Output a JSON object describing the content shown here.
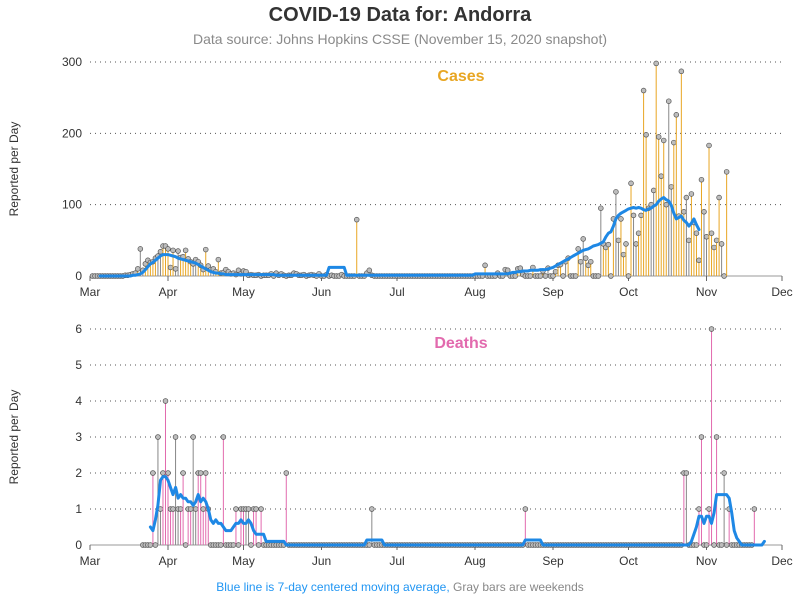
{
  "title": "COVID-19 Data for: Andorra",
  "subtitle": "Data source: Johns Hopkins CSSE (November 15, 2020 snapshot)",
  "footer": {
    "moving_avg_note": "Blue line is 7-day centered moving average,",
    "weekend_note": "Gray bars are weekends"
  },
  "colors": {
    "cases": "#e8a623",
    "deaths": "#e26aae",
    "moving_average": "#1e88e5",
    "weekend": "#888888",
    "grid": "#555555"
  },
  "chart_data": [
    {
      "type": "bar",
      "panel_title": "Cases",
      "ylabel": "Reported per Day",
      "xlabel": "",
      "ylim": [
        0,
        300
      ],
      "yticks": [
        0,
        100,
        200,
        300
      ],
      "x_domain": [
        "2020-03-01",
        "2020-12-01"
      ],
      "x_tick_labels": [
        "Mar",
        "Apr",
        "May",
        "Jun",
        "Jul",
        "Aug",
        "Sep",
        "Oct",
        "Nov",
        "Dec"
      ],
      "grid": true,
      "start_date": "2020-03-02",
      "daily_values": [
        0,
        0,
        0,
        0,
        0,
        0,
        0,
        0,
        0,
        0,
        0,
        0,
        0,
        1,
        1,
        2,
        3,
        4,
        10,
        38,
        8,
        17,
        22,
        19,
        20,
        25,
        28,
        34,
        42,
        42,
        38,
        12,
        36,
        10,
        35,
        26,
        27,
        36,
        24,
        20,
        17,
        23,
        20,
        15,
        9,
        37,
        14,
        9,
        10,
        6,
        23,
        4,
        5,
        9,
        6,
        3,
        4,
        2,
        8,
        3,
        7,
        6,
        1,
        2,
        1,
        1,
        2,
        0,
        1,
        1,
        1,
        3,
        0,
        4,
        1,
        3,
        1,
        0,
        1,
        1,
        4,
        3,
        1,
        1,
        2,
        0,
        1,
        2,
        1,
        0,
        3,
        0,
        0,
        2,
        0,
        1,
        0,
        0,
        0,
        2,
        0,
        0,
        0,
        0,
        0,
        79,
        0,
        0,
        0,
        4,
        8,
        1,
        0,
        0,
        0,
        0,
        0,
        0,
        0,
        0,
        0,
        0,
        0,
        0,
        0,
        0,
        0,
        0,
        0,
        0,
        0,
        0,
        0,
        0,
        0,
        0,
        0,
        0,
        0,
        0,
        0,
        0,
        0,
        0,
        0,
        0,
        0,
        0,
        0,
        0,
        0,
        0,
        0,
        0,
        0,
        0,
        15,
        0,
        0,
        0,
        0,
        4,
        0,
        0,
        9,
        8,
        0,
        0,
        0,
        10,
        11,
        2,
        0,
        0,
        0,
        12,
        0,
        0,
        0,
        7,
        0,
        11,
        0,
        0,
        6,
        15,
        16,
        0,
        20,
        25,
        0,
        0,
        0,
        38,
        20,
        52,
        25,
        15,
        20,
        0,
        0,
        0,
        95,
        45,
        40,
        44,
        0,
        80,
        118,
        50,
        80,
        30,
        45,
        0,
        130,
        85,
        45,
        60,
        85,
        260,
        198,
        95,
        100,
        120,
        298,
        195,
        140,
        190,
        100,
        245,
        125,
        187,
        226,
        84,
        287,
        90,
        110,
        50,
        115,
        75,
        60,
        22,
        135,
        90,
        55,
        183,
        60,
        40,
        50,
        110,
        45,
        0,
        146
      ],
      "moving_average": {
        "name": "7-day centered moving average",
        "start_date": "2020-03-05",
        "values": [
          0,
          0,
          0,
          0,
          0,
          0,
          0,
          0,
          0,
          0,
          0,
          0,
          0,
          1,
          1,
          2,
          3,
          5,
          9,
          13,
          17,
          19,
          22,
          25,
          28,
          30,
          30,
          30,
          29,
          28,
          27,
          25,
          24,
          23,
          22,
          21,
          20,
          19,
          18,
          16,
          14,
          12,
          10,
          8,
          6,
          5,
          4,
          4,
          3,
          3,
          2,
          2,
          2,
          2,
          2,
          2,
          2,
          2,
          2,
          2,
          2,
          2,
          2,
          2,
          2,
          2,
          2,
          2,
          2,
          2,
          1,
          1,
          1,
          1,
          1,
          1,
          1,
          1,
          1,
          1,
          1,
          1,
          1,
          1,
          1,
          1,
          1,
          1,
          1,
          1,
          1,
          12,
          12,
          12,
          12,
          12,
          12,
          12,
          1,
          1,
          1,
          1,
          1,
          1,
          1,
          1,
          1,
          1,
          1,
          1,
          1,
          1,
          1,
          1,
          1,
          1,
          1,
          1,
          1,
          1,
          1,
          1,
          1,
          1,
          1,
          1,
          1,
          1,
          1,
          1,
          1,
          1,
          1,
          1,
          1,
          1,
          1,
          1,
          1,
          1,
          1,
          1,
          1,
          1,
          1,
          1,
          1,
          1,
          1,
          3,
          3,
          3,
          3,
          3,
          3,
          3,
          3,
          3,
          3,
          3,
          3,
          3,
          3,
          4,
          5,
          5,
          6,
          6,
          7,
          7,
          7,
          8,
          8,
          8,
          8,
          9,
          9,
          9,
          10,
          11,
          12,
          14,
          16,
          18,
          20,
          22,
          24,
          26,
          28,
          30,
          32,
          34,
          36,
          37,
          38,
          40,
          42,
          43,
          44,
          46,
          48,
          55,
          60,
          62,
          70,
          80,
          85,
          88,
          90,
          92,
          94,
          95,
          96,
          95,
          96,
          95,
          93,
          92,
          94,
          95,
          98,
          100,
          105,
          108,
          110,
          107,
          105,
          99,
          88,
          80,
          82,
          84,
          78,
          75,
          70,
          74,
          80,
          72,
          65
        ]
      }
    },
    {
      "type": "bar",
      "panel_title": "Deaths",
      "ylabel": "Reported per Day",
      "xlabel": "",
      "ylim": [
        0,
        6
      ],
      "yticks": [
        0,
        1,
        2,
        3,
        4,
        5,
        6
      ],
      "x_domain": [
        "2020-03-01",
        "2020-12-01"
      ],
      "x_tick_labels": [
        "Mar",
        "Apr",
        "May",
        "Jun",
        "Jul",
        "Aug",
        "Sep",
        "Oct",
        "Nov",
        "Dec"
      ],
      "grid": true,
      "start_date": "2020-03-22",
      "daily_values": [
        0,
        0,
        0,
        0,
        2,
        0,
        3,
        1,
        2,
        4,
        2,
        1,
        1,
        3,
        1,
        1,
        2,
        0,
        1,
        1,
        3,
        1,
        2,
        2,
        1,
        2,
        1,
        0,
        0,
        0,
        0,
        0,
        3,
        0,
        0,
        0,
        0,
        1,
        0,
        1,
        1,
        1,
        1,
        0,
        1,
        1,
        0,
        1,
        0,
        0,
        0,
        0,
        0,
        0,
        0,
        0,
        0,
        2,
        0,
        0,
        0,
        0,
        0,
        0,
        0,
        0,
        0,
        0,
        0,
        0,
        0,
        0,
        0,
        0,
        0,
        0,
        0,
        0,
        0,
        0,
        0,
        0,
        0,
        0,
        0,
        0,
        0,
        0,
        0,
        0,
        0,
        1,
        0,
        0,
        0,
        0,
        0,
        0,
        0,
        0,
        0,
        0,
        0,
        0,
        0,
        0,
        0,
        0,
        0,
        0,
        0,
        0,
        0,
        0,
        0,
        0,
        0,
        0,
        0,
        0,
        0,
        0,
        0,
        0,
        0,
        0,
        0,
        0,
        0,
        0,
        0,
        0,
        0,
        0,
        0,
        0,
        0,
        0,
        0,
        0,
        0,
        0,
        0,
        0,
        0,
        0,
        0,
        0,
        0,
        0,
        0,
        0,
        1,
        0,
        0,
        0,
        0,
        0,
        0,
        0,
        0,
        0,
        0,
        0,
        0,
        0,
        0,
        0,
        0,
        0,
        0,
        0,
        0,
        0,
        0,
        0,
        0,
        0,
        0,
        0,
        0,
        0,
        0,
        0,
        0,
        0,
        0,
        0,
        0,
        0,
        0,
        0,
        0,
        0,
        0,
        0,
        0,
        0,
        0,
        0,
        0,
        0,
        0,
        0,
        0,
        0,
        0,
        0,
        0,
        0,
        0,
        0,
        0,
        0,
        0,
        2,
        2,
        0,
        0,
        0,
        0,
        1,
        3,
        0,
        0,
        1,
        6,
        0,
        3,
        0,
        0,
        2,
        0,
        1,
        0,
        0,
        0,
        0,
        0,
        0,
        0,
        0,
        0,
        1
      ],
      "moving_average": {
        "name": "7-day centered moving average",
        "start_date": "2020-03-25",
        "values": [
          0.5,
          0.4,
          0.7,
          1.1,
          1.8,
          1.9,
          1.9,
          1.8,
          1.6,
          1.4,
          1.6,
          1.3,
          1.4,
          1.3,
          1.3,
          1.2,
          1.2,
          1.1,
          1.2,
          1.4,
          1.2,
          1.3,
          1.2,
          1.0,
          0.7,
          0.6,
          0.7,
          0.6,
          0.6,
          0.5,
          0.4,
          0.4,
          0.4,
          0.5,
          0.6,
          0.6,
          0.7,
          0.6,
          0.6,
          0.7,
          0.6,
          0.4,
          0.3,
          0.3,
          0.3,
          0.3,
          0.1,
          0.1,
          0.1,
          0.1,
          0.1,
          0.1,
          0.1,
          0.1,
          0,
          0,
          0,
          0,
          0,
          0,
          0,
          0,
          0,
          0,
          0,
          0,
          0,
          0,
          0,
          0,
          0,
          0,
          0,
          0,
          0,
          0,
          0,
          0,
          0,
          0,
          0,
          0,
          0,
          0,
          0,
          0,
          0.14,
          0.14,
          0.14,
          0.14,
          0.14,
          0.14,
          0.14,
          0,
          0,
          0,
          0,
          0,
          0,
          0,
          0,
          0,
          0,
          0,
          0,
          0,
          0,
          0,
          0,
          0,
          0,
          0,
          0,
          0,
          0,
          0,
          0,
          0,
          0,
          0,
          0,
          0,
          0,
          0,
          0,
          0,
          0,
          0,
          0,
          0,
          0,
          0,
          0,
          0,
          0,
          0,
          0,
          0,
          0,
          0,
          0,
          0,
          0,
          0,
          0,
          0,
          0,
          0,
          0,
          0.14,
          0.14,
          0.14,
          0.14,
          0.14,
          0.14,
          0.14,
          0,
          0,
          0,
          0,
          0,
          0,
          0,
          0,
          0,
          0,
          0,
          0,
          0,
          0,
          0,
          0,
          0,
          0,
          0,
          0,
          0,
          0,
          0,
          0,
          0,
          0,
          0,
          0,
          0,
          0,
          0,
          0,
          0,
          0,
          0,
          0,
          0,
          0,
          0,
          0,
          0,
          0,
          0,
          0,
          0,
          0,
          0,
          0,
          0,
          0,
          0,
          0,
          0,
          0,
          0,
          0,
          0,
          0,
          0,
          0.1,
          0.3,
          0.5,
          0.8,
          0.8,
          0.6,
          0.8,
          0.8,
          0.6,
          0.9,
          1.4,
          1.4,
          1.4,
          1.4,
          1.4,
          1.3,
          0.9,
          0.4,
          0.2,
          0.1,
          0,
          0,
          0,
          0,
          0,
          0,
          0,
          0,
          0,
          0.1
        ]
      }
    }
  ]
}
